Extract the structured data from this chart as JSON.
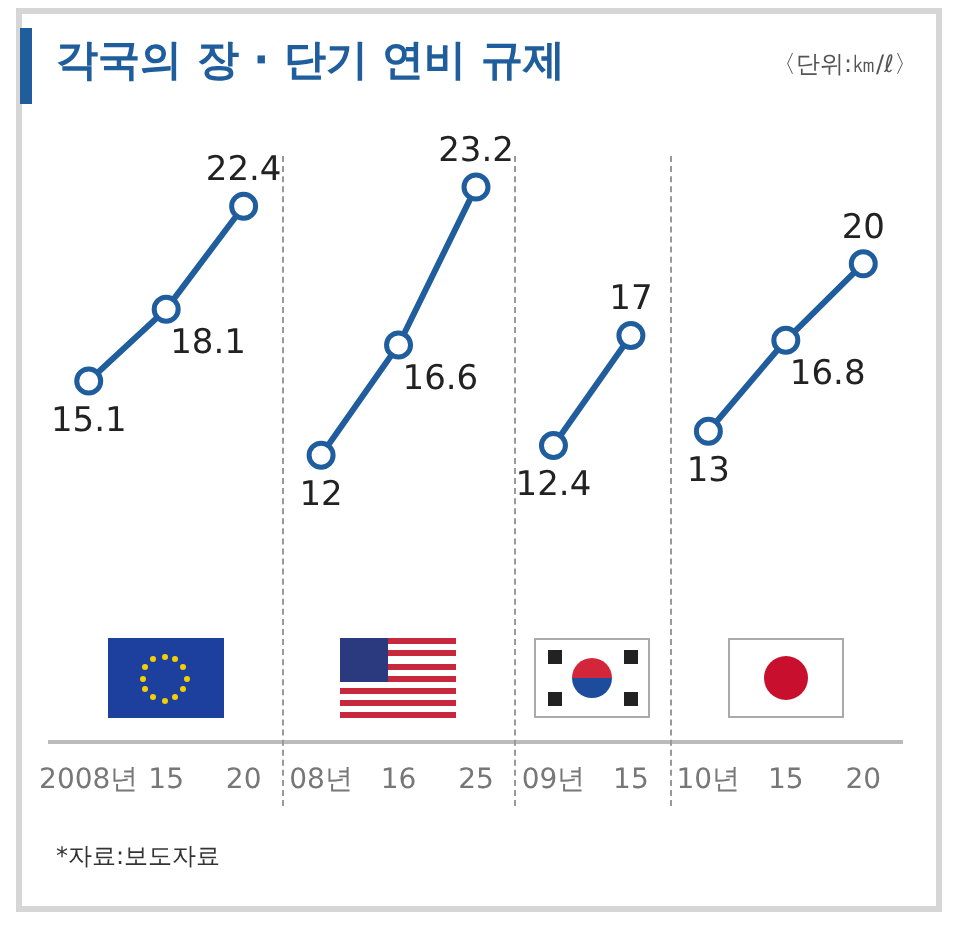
{
  "chart_data": {
    "type": "line",
    "title": "각국의 장 · 단기 연비 규제",
    "subtitle": "〈단위:㎞/ℓ〉",
    "categories": [
      "2008년",
      "15",
      "20",
      "08년",
      "16",
      "25",
      "09년",
      "15",
      "10년",
      "15",
      "20"
    ],
    "series": [
      {
        "color": "#1f5d9c",
        "values": [
          15.1,
          18.1,
          22.4,
          null,
          null,
          null,
          null,
          null,
          null,
          null,
          null
        ]
      },
      {
        "color": "#1f5d9c",
        "values": [
          null,
          null,
          null,
          12,
          16.6,
          23.2,
          null,
          null,
          null,
          null,
          null
        ]
      },
      {
        "color": "#1f5d9c",
        "values": [
          null,
          null,
          null,
          null,
          null,
          null,
          12.4,
          17,
          null,
          null,
          null
        ]
      },
      {
        "color": "#1f5d9c",
        "values": [
          null,
          null,
          null,
          null,
          null,
          null,
          null,
          null,
          13,
          16.8,
          20
        ]
      }
    ],
    "tick_labels": "x",
    "marker": "circle",
    "data_labels": true,
    "annotations": [
      "*자료:보도자료"
    ]
  }
}
